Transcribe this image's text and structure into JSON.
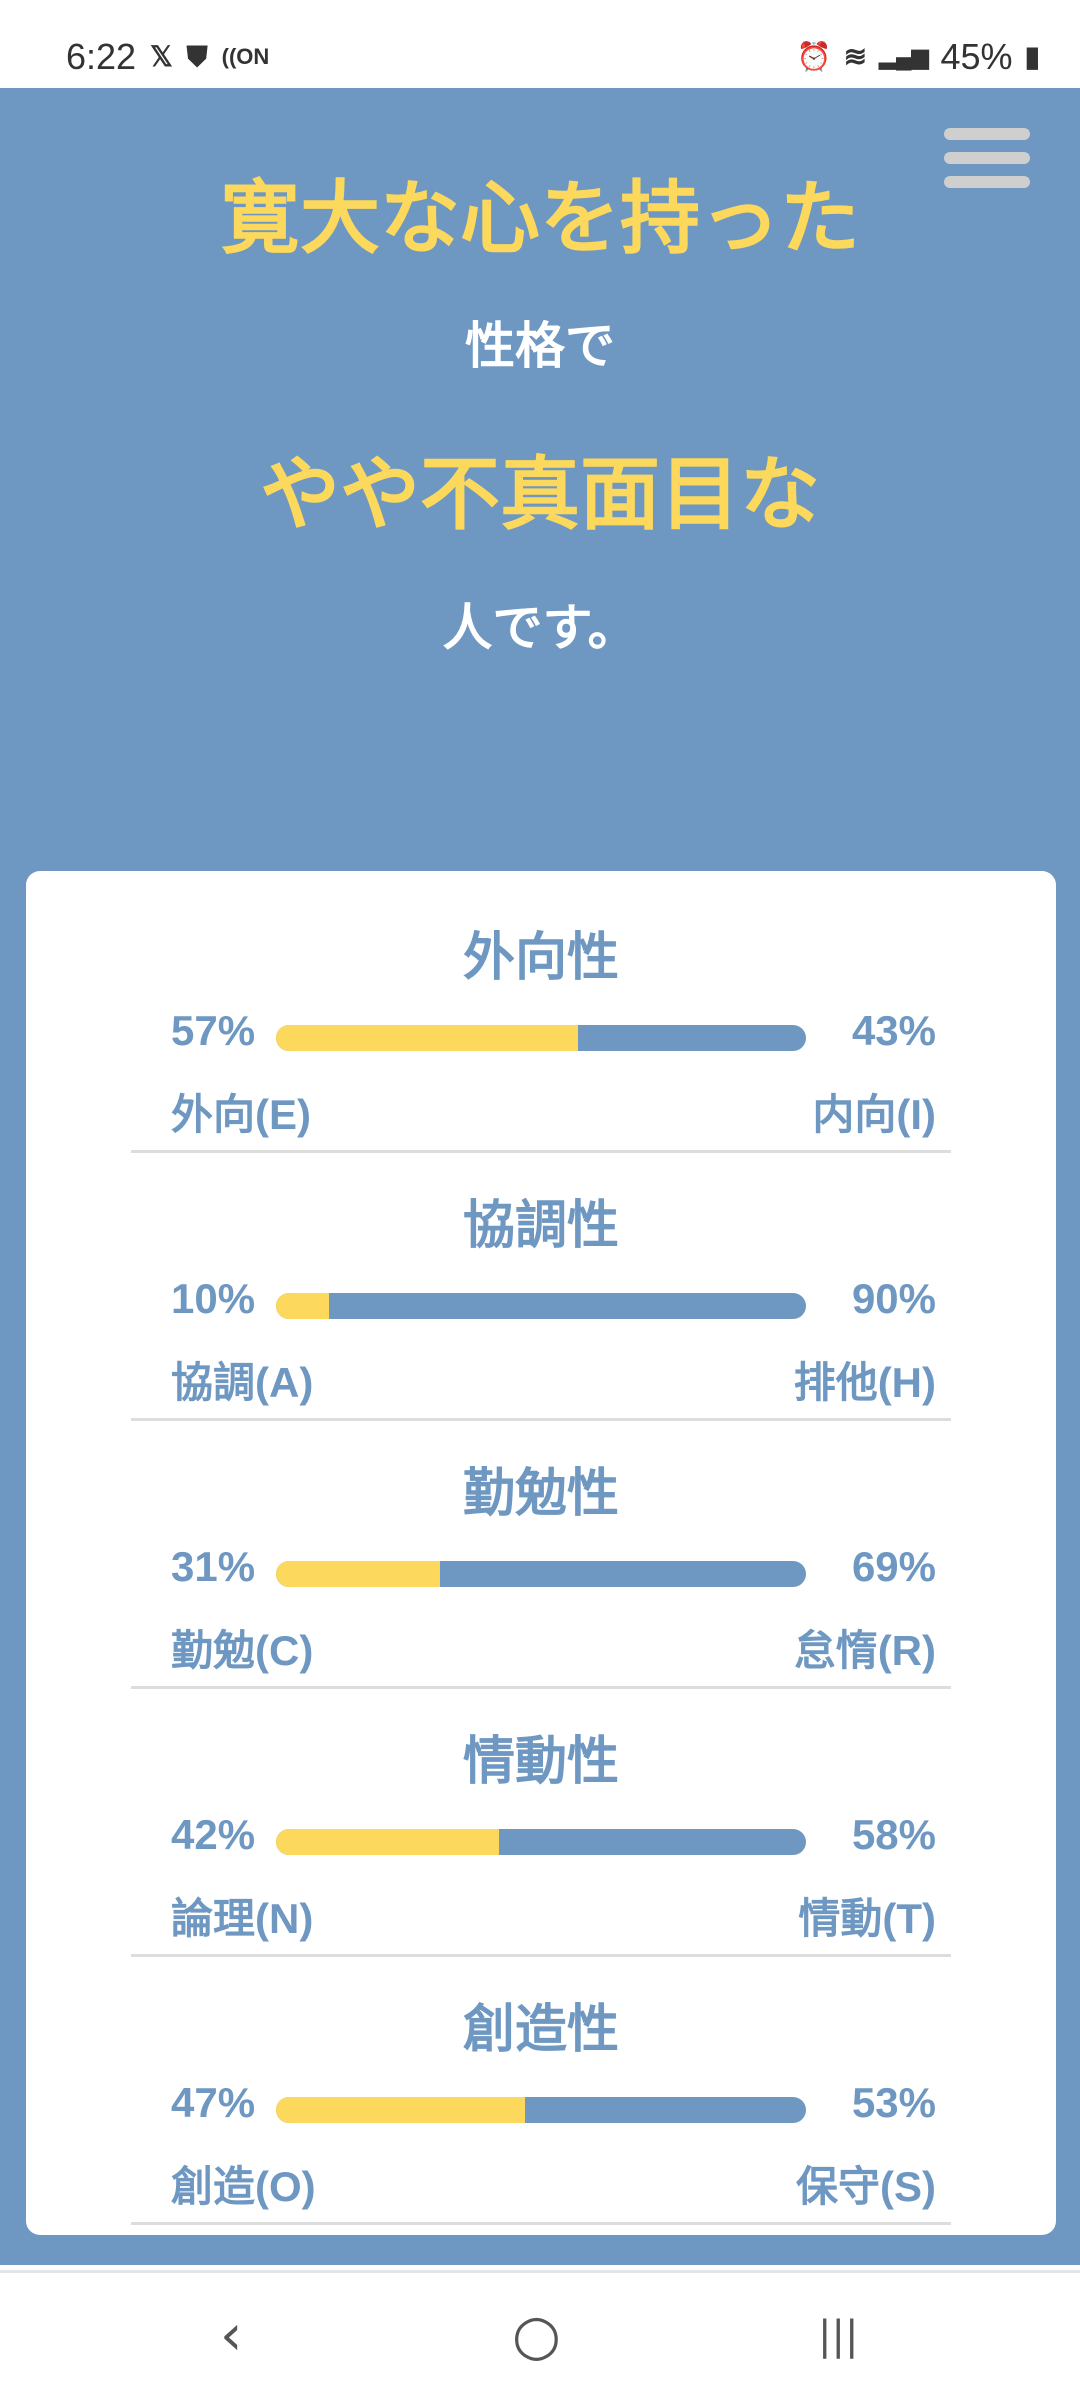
{
  "status": {
    "time": "6:22",
    "battery": "45%",
    "icons": [
      "x-icon",
      "shield-check-icon",
      "nfc-on-icon",
      "alarm-icon",
      "wifi-icon",
      "signal-icon",
      "battery-icon"
    ]
  },
  "hero": {
    "line1": "寛大な心を持った",
    "line2": "性格で",
    "line3": "やや不真面目な",
    "line4": "人です。"
  },
  "colors": {
    "background": "#6e97c1",
    "accent": "#fcd95c"
  },
  "traits": [
    {
      "title": "外向性",
      "left_pct": "57%",
      "right_pct": "43%",
      "left_label": "外向(E)",
      "right_label": "内向(I)",
      "value": 57
    },
    {
      "title": "協調性",
      "left_pct": "10%",
      "right_pct": "90%",
      "left_label": "協調(A)",
      "right_label": "排他(H)",
      "value": 10
    },
    {
      "title": "勤勉性",
      "left_pct": "31%",
      "right_pct": "69%",
      "left_label": "勤勉(C)",
      "right_label": "怠惰(R)",
      "value": 31
    },
    {
      "title": "情動性",
      "left_pct": "42%",
      "right_pct": "58%",
      "left_label": "論理(N)",
      "right_label": "情動(T)",
      "value": 42
    },
    {
      "title": "創造性",
      "left_pct": "47%",
      "right_pct": "53%",
      "left_label": "創造(O)",
      "right_label": "保守(S)",
      "value": 47
    }
  ],
  "nav": {
    "back": "‹",
    "home": "○",
    "recents": "|||"
  }
}
